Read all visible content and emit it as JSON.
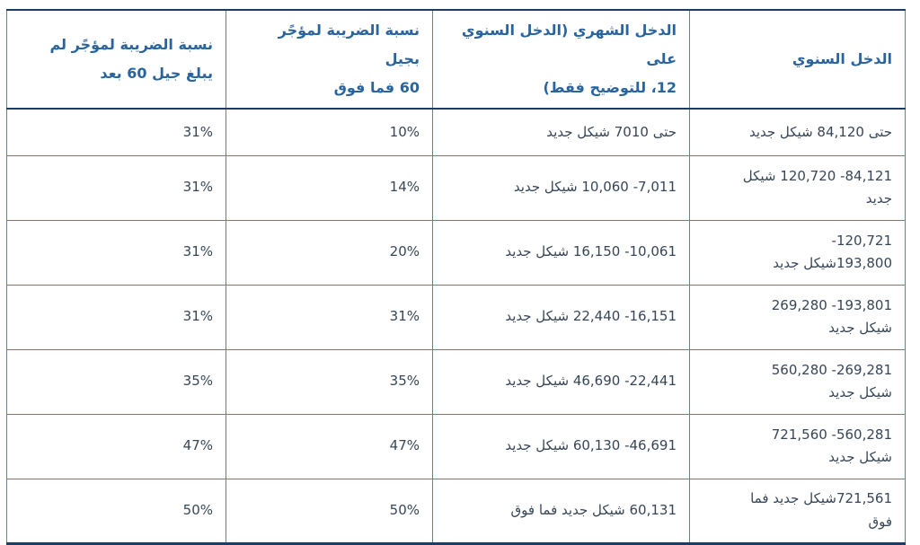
{
  "page": {
    "background": "#ffffff"
  },
  "colors": {
    "header_text": "#2a649e",
    "body_text": "#374657",
    "grid_border": "#5d81a8",
    "strong_border": "#1c3c64"
  },
  "table": {
    "direction": "rtl",
    "columns": [
      {
        "id": "annual_income",
        "label": "الدخل السنوي"
      },
      {
        "id": "monthly_income",
        "label": "الدخل الشهري (الدخل السنوي على\n12، للتوضيح فقط)"
      },
      {
        "id": "tax_rate_age_60_plus",
        "label": "نسبة الضريبة لمؤجًر بجيل\n60 فما فوق"
      },
      {
        "id": "tax_rate_under_60",
        "label": "نسبة الضريبة لمؤجًر لم\nيبلغ جيل 60 بعد"
      }
    ],
    "rows": [
      {
        "annual_income": "حتى 84,120 شيكل جديد",
        "monthly_income": "حتى 7010 شيكل جديد",
        "tax_rate_age_60_plus": "10%",
        "tax_rate_under_60": "31%"
      },
      {
        "annual_income": "84,121- 120,720 شيكل\nجديد",
        "monthly_income": "7,011- 10,060 شيكل جديد",
        "tax_rate_age_60_plus": "14%",
        "tax_rate_under_60": "31%"
      },
      {
        "annual_income": "120,721-\n193,800شيكل جديد",
        "monthly_income": "10,061- 16,150 شيكل جديد",
        "tax_rate_age_60_plus": "20%",
        "tax_rate_under_60": "31%"
      },
      {
        "annual_income": "193,801- 269,280\nشيكل جديد",
        "monthly_income": "16,151- 22,440 شيكل جديد",
        "tax_rate_age_60_plus": "31%",
        "tax_rate_under_60": "31%"
      },
      {
        "annual_income": "269,281- 560,280\nشيكل جديد",
        "monthly_income": "22,441- 46,690 شيكل جديد",
        "tax_rate_age_60_plus": "35%",
        "tax_rate_under_60": "35%"
      },
      {
        "annual_income": "560,281- 721,560\nشيكل جديد",
        "monthly_income": "46,691- 60,130 شيكل جديد",
        "tax_rate_age_60_plus": "47%",
        "tax_rate_under_60": "47%"
      },
      {
        "annual_income": "721,561شيكل جديد فما\nفوق",
        "monthly_income": "60,131 شيكل جديد فما فوق",
        "tax_rate_age_60_plus": "50%",
        "tax_rate_under_60": "50%"
      }
    ]
  }
}
